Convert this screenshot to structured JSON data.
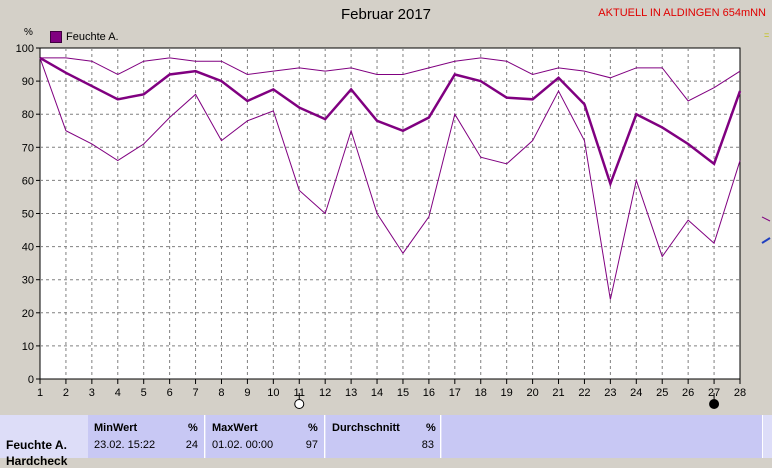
{
  "header": {
    "title": "Februar 2017",
    "station": "AKTUELL IN ALDINGEN 654mNN"
  },
  "legend": {
    "label": "Feuchte A."
  },
  "unit": "%",
  "chart_data": {
    "type": "line",
    "title": "Februar 2017",
    "ylabel": "%",
    "ylim": [
      0,
      100
    ],
    "xlim": [
      1,
      28
    ],
    "x": [
      1,
      2,
      3,
      4,
      5,
      6,
      7,
      8,
      9,
      10,
      11,
      12,
      13,
      14,
      15,
      16,
      17,
      18,
      19,
      20,
      21,
      22,
      23,
      24,
      25,
      26,
      27,
      28
    ],
    "x_ticks": [
      "1",
      "2",
      "3",
      "4",
      "5",
      "6",
      "7",
      "8",
      "9",
      "10",
      "11",
      "12",
      "13",
      "14",
      "15",
      "16",
      "17",
      "18",
      "19",
      "20",
      "21",
      "22",
      "23",
      "24",
      "25",
      "26",
      "27",
      "28"
    ],
    "y_ticks": [
      "0",
      "10",
      "20",
      "30",
      "40",
      "50",
      "60",
      "70",
      "80",
      "90",
      "100"
    ],
    "grid": true,
    "legend_position": "top-left",
    "series": [
      {
        "name": "Feuchte A.",
        "role": "max",
        "color": "#800080",
        "values": [
          97,
          97,
          96,
          92,
          96,
          97,
          96,
          96,
          92,
          93,
          94,
          93,
          94,
          92,
          92,
          94,
          96,
          97,
          96,
          92,
          94,
          93,
          91,
          94,
          94,
          84,
          88,
          93
        ]
      },
      {
        "name": "Feuchte A.",
        "role": "avg",
        "color": "#800080",
        "values": [
          97,
          92.5,
          88.5,
          84.5,
          86,
          92,
          93,
          90,
          84,
          87.5,
          82,
          78.5,
          87.5,
          78,
          75,
          79,
          92,
          90,
          85,
          84.5,
          91,
          83,
          59,
          80,
          76,
          71,
          65,
          87
        ]
      },
      {
        "name": "Feuchte A.",
        "role": "min",
        "color": "#800080",
        "values": [
          97,
          75,
          71,
          66,
          71,
          79,
          86,
          72,
          78,
          81,
          57,
          50,
          75,
          50,
          38,
          49,
          80,
          67,
          65,
          72,
          87,
          72,
          24,
          60,
          37,
          48,
          41,
          66
        ]
      }
    ],
    "moon_markers": [
      {
        "day": 11,
        "phase": "full-moon"
      },
      {
        "day": 27,
        "phase": "new-moon"
      }
    ]
  },
  "footer": {
    "row_label": "Feuchte A.",
    "row_label_next": "Hardcheck",
    "min": {
      "header": "MinWert",
      "unit": "%",
      "date": "23.02.  15:22",
      "value": "24"
    },
    "max": {
      "header": "MaxWert",
      "unit": "%",
      "date": "01.02.  00:00",
      "value": "97"
    },
    "avg": {
      "header": "Durchschnitt",
      "unit": "%",
      "value": "83"
    }
  }
}
